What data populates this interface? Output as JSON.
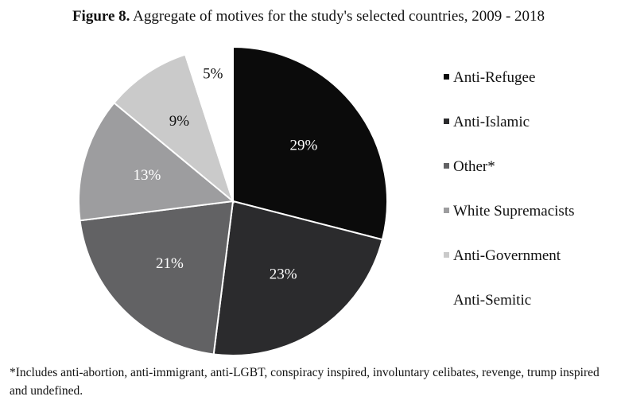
{
  "title": {
    "prefix": "Figure 8.",
    "text": "Aggregate of motives for the study's selected countries, 2009 - 2018"
  },
  "chart_data": {
    "type": "pie",
    "title": "Figure 8. Aggregate of motives for the study's selected countries, 2009 - 2018",
    "slices": [
      {
        "label": "Anti-Refugee",
        "value": 29,
        "display": "29%",
        "color": "#0b0b0b",
        "label_color": "#ffffff"
      },
      {
        "label": "Anti-Islamic",
        "value": 23,
        "display": "23%",
        "color": "#2b2b2d",
        "label_color": "#ffffff"
      },
      {
        "label": "Other*",
        "value": 21,
        "display": "21%",
        "color": "#626264",
        "label_color": "#ffffff"
      },
      {
        "label": "White Supremacists",
        "value": 13,
        "display": "13%",
        "color": "#9d9d9f",
        "label_color": "#ffffff"
      },
      {
        "label": "Anti-Government",
        "value": 9,
        "display": "9%",
        "color": "#cacaca",
        "label_color": "#111111"
      },
      {
        "label": "Anti-Semitic",
        "value": 5,
        "display": "5%",
        "color": "#ffffff",
        "label_color": "#111111"
      }
    ],
    "legend_position": "right",
    "start_angle": "top",
    "direction": "clockwise"
  },
  "footnote": "*Includes anti-abortion, anti-immigrant, anti-LGBT, conspiracy inspired, involuntary celibates, revenge, trump inspired and undefined."
}
